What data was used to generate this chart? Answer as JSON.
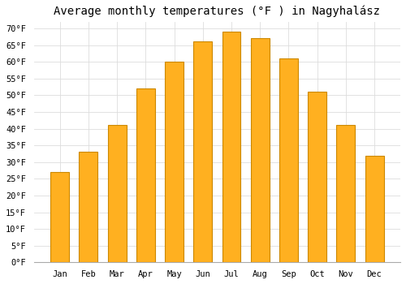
{
  "title": "Average monthly temperatures (°F ) in Nagyhalász",
  "months": [
    "Jan",
    "Feb",
    "Mar",
    "Apr",
    "May",
    "Jun",
    "Jul",
    "Aug",
    "Sep",
    "Oct",
    "Nov",
    "Dec"
  ],
  "values": [
    27,
    33,
    41,
    52,
    60,
    66,
    69,
    67,
    61,
    51,
    41,
    32
  ],
  "bar_color": "#FFB020",
  "bar_edge_color": "#CC8800",
  "background_color": "#FFFFFF",
  "plot_bg_color": "#FFFFFF",
  "grid_color": "#DDDDDD",
  "ylim": [
    0,
    72
  ],
  "yticks": [
    0,
    5,
    10,
    15,
    20,
    25,
    30,
    35,
    40,
    45,
    50,
    55,
    60,
    65,
    70
  ],
  "title_fontsize": 10,
  "tick_fontsize": 7.5,
  "font_family": "monospace"
}
